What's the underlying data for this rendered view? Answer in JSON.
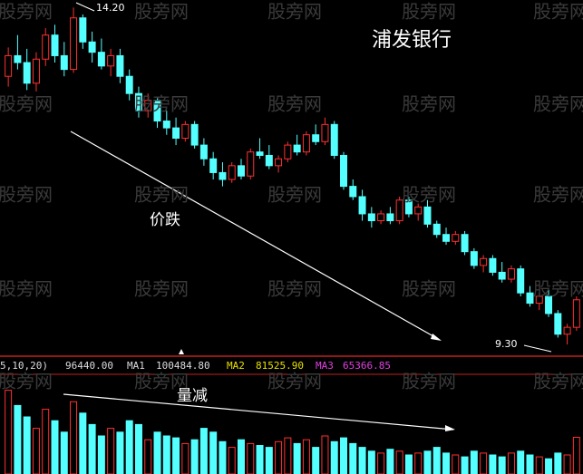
{
  "chart_data": {
    "type": "candlestick",
    "title": "浦发银行",
    "watermark": "股旁网",
    "annotations": [
      "价跌",
      "量减",
      "14.20",
      "9.30"
    ],
    "indicator_header": [
      "5,10,20)",
      "96440.00",
      "MA1",
      "100484.80",
      "MA2",
      "81525.90",
      "MA3",
      "65366.85"
    ],
    "up_color": "#ff3030",
    "down_color": "#54ffff",
    "ylim": [
      9.13,
      14.31
    ],
    "volume_ylim": [
      0,
      250000
    ],
    "open": [
      13.2,
      13.5,
      13.4,
      13.1,
      13.45,
      13.8,
      13.5,
      13.3,
      14.05,
      13.7,
      13.55,
      13.35,
      13.5,
      13.2,
      12.95,
      12.7,
      12.85,
      12.55,
      12.45,
      12.3,
      12.5,
      12.2,
      12.0,
      11.8,
      11.7,
      11.9,
      11.75,
      12.1,
      12.05,
      11.9,
      12.0,
      12.2,
      12.1,
      12.35,
      12.25,
      12.5,
      12.05,
      11.6,
      11.45,
      11.2,
      11.1,
      11.2,
      11.1,
      11.4,
      11.2,
      11.3,
      11.05,
      10.9,
      10.8,
      10.9,
      10.65,
      10.45,
      10.55,
      10.35,
      10.25,
      10.4,
      10.05,
      9.9,
      10.0,
      9.75,
      9.45,
      9.55
    ],
    "high": [
      13.62,
      13.8,
      13.6,
      13.55,
      13.9,
      13.95,
      13.7,
      14.2,
      14.1,
      13.85,
      13.75,
      13.6,
      13.6,
      13.3,
      13.05,
      12.95,
      12.9,
      12.7,
      12.6,
      12.55,
      12.55,
      12.3,
      12.1,
      11.95,
      11.95,
      12.0,
      12.15,
      12.3,
      12.2,
      12.05,
      12.25,
      12.35,
      12.4,
      12.5,
      12.6,
      12.55,
      12.1,
      11.7,
      11.55,
      11.3,
      11.25,
      11.3,
      11.45,
      11.45,
      11.35,
      11.4,
      11.1,
      11.0,
      10.95,
      10.95,
      10.7,
      10.6,
      10.6,
      10.5,
      10.45,
      10.45,
      10.15,
      10.05,
      10.1,
      9.8,
      9.6,
      10.0
    ],
    "low": [
      13.05,
      13.3,
      13.0,
      12.98,
      13.35,
      13.4,
      13.2,
      13.25,
      13.6,
      13.4,
      13.3,
      13.2,
      13.1,
      12.85,
      12.6,
      12.6,
      12.45,
      12.35,
      12.2,
      12.25,
      12.15,
      11.9,
      11.7,
      11.6,
      11.65,
      11.7,
      11.7,
      12.0,
      11.85,
      11.8,
      11.95,
      12.05,
      12.05,
      12.2,
      12.2,
      12.0,
      11.55,
      11.4,
      11.1,
      11.0,
      11.05,
      11.05,
      11.05,
      11.15,
      11.1,
      11.0,
      10.85,
      10.75,
      10.75,
      10.6,
      10.4,
      10.35,
      10.3,
      10.2,
      10.2,
      10.0,
      9.85,
      9.8,
      9.7,
      9.4,
      9.3,
      9.5
    ],
    "close": [
      13.5,
      13.4,
      13.1,
      13.45,
      13.8,
      13.5,
      13.3,
      14.05,
      13.7,
      13.55,
      13.35,
      13.5,
      13.2,
      12.95,
      12.7,
      12.85,
      12.55,
      12.45,
      12.3,
      12.5,
      12.2,
      12.0,
      11.8,
      11.7,
      11.9,
      11.75,
      12.1,
      12.05,
      11.9,
      12.0,
      12.2,
      12.1,
      12.35,
      12.25,
      12.5,
      12.05,
      11.6,
      11.45,
      11.2,
      11.1,
      11.2,
      11.1,
      11.4,
      11.2,
      11.3,
      11.05,
      10.9,
      10.8,
      10.9,
      10.65,
      10.45,
      10.55,
      10.35,
      10.25,
      10.4,
      10.05,
      9.9,
      10.0,
      9.75,
      9.45,
      9.55,
      9.95
    ],
    "volume": [
      220000,
      180000,
      150000,
      120000,
      170000,
      140000,
      110000,
      190000,
      160000,
      130000,
      100000,
      120000,
      110000,
      140000,
      130000,
      90000,
      110000,
      100000,
      95000,
      80000,
      90000,
      120000,
      110000,
      85000,
      70000,
      90000,
      80000,
      75000,
      70000,
      85000,
      95000,
      80000,
      90000,
      70000,
      100000,
      85000,
      95000,
      80000,
      70000,
      60000,
      55000,
      65000,
      60000,
      50000,
      55000,
      60000,
      70000,
      55000,
      50000,
      45000,
      60000,
      55000,
      50000,
      45000,
      55000,
      60000,
      50000,
      45000,
      40000,
      55000,
      50000,
      96440
    ]
  }
}
